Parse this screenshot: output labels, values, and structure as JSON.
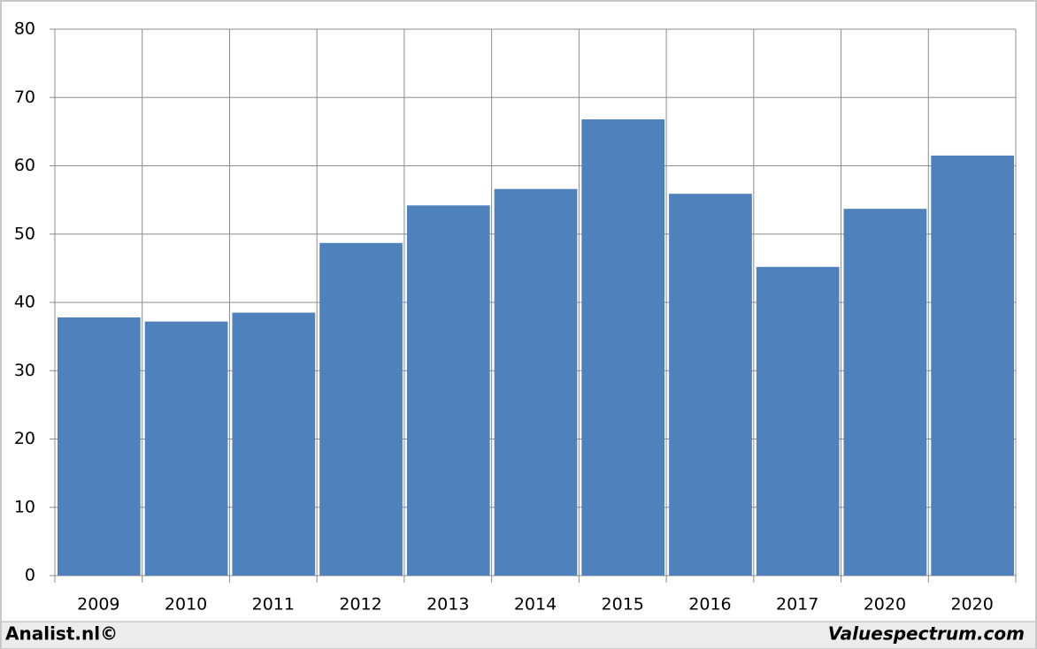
{
  "chart_data": {
    "type": "bar",
    "categories": [
      "2009",
      "2010",
      "2011",
      "2012",
      "2013",
      "2014",
      "2015",
      "2016",
      "2017",
      "2020",
      "2020"
    ],
    "values": [
      37.8,
      37.2,
      38.5,
      48.7,
      54.2,
      56.6,
      66.8,
      55.9,
      45.2,
      53.7,
      61.5
    ],
    "color": "#4f81bd",
    "ylim": [
      0,
      80
    ],
    "yticks": [
      0,
      10,
      20,
      30,
      40,
      50,
      60,
      70,
      80
    ],
    "grid": true,
    "annotations": [
      "Analist.nl©",
      "Valuespectrum.com"
    ]
  }
}
